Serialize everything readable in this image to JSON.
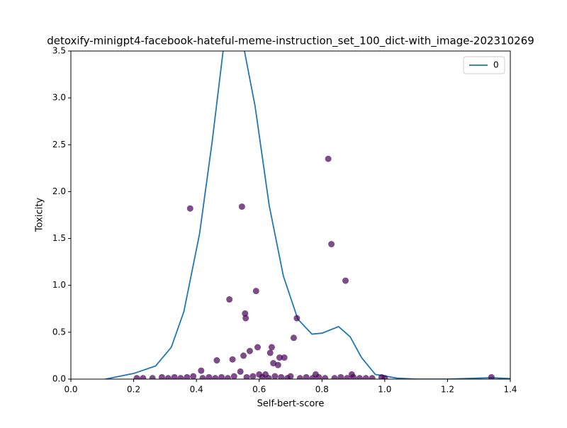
{
  "chart_data": {
    "type": "scatter",
    "title": "detoxify-minigpt4-facebook-hateful-meme-instruction_set_100_dict-with_image-202310269",
    "xlabel": "Self-bert-score",
    "ylabel": "Toxicity",
    "xlim": [
      0,
      1.4
    ],
    "ylim": [
      0,
      3.5
    ],
    "xticks": [
      {
        "value": 0,
        "label": "0.0"
      },
      0.2,
      0.4,
      0.6,
      0.8,
      {
        "value": 1,
        "label": "1.0"
      },
      1.2,
      1.4
    ],
    "yticks": [
      {
        "value": 0,
        "label": "0.0"
      },
      0.5,
      {
        "value": 1,
        "label": "1.0"
      },
      1.5,
      {
        "value": 2,
        "label": "2.0"
      },
      2.5,
      {
        "value": 3,
        "label": "3.0"
      },
      3.5
    ],
    "legend": "upper right",
    "series": [
      {
        "name": "0",
        "type": "line",
        "color": "#1f77b4",
        "x": [
          0.11,
          0.2,
          0.27,
          0.32,
          0.36,
          0.41,
          0.45,
          0.485,
          0.52,
          0.553,
          0.587,
          0.632,
          0.677,
          0.723,
          0.768,
          0.8,
          0.853,
          0.89,
          0.926,
          0.97,
          1.04,
          1.1,
          1.2,
          1.34,
          1.4
        ],
        "values": [
          0,
          0.06,
          0.14,
          0.34,
          0.72,
          1.55,
          2.53,
          3.5,
          3.85,
          3.5,
          2.91,
          1.85,
          1.1,
          0.64,
          0.48,
          0.49,
          0.56,
          0.45,
          0.23,
          0.05,
          0.01,
          0,
          0,
          0.015,
          0.005
        ]
      },
      {
        "type": "scatter",
        "color": "#440154",
        "x": [
          0.38,
          0.545,
          0.82,
          0.83,
          0.875,
          0.505,
          0.59,
          0.555,
          0.557,
          0.72,
          0.71,
          0.64,
          0.595,
          0.57,
          0.635,
          0.55,
          0.665,
          0.68,
          0.465,
          0.515,
          0.645,
          0.66,
          0.415,
          0.54,
          0.6,
          0.62,
          0.78,
          0.895,
          1.34,
          0.21,
          0.23,
          0.26,
          0.29,
          0.31,
          0.33,
          0.35,
          0.37,
          0.39,
          0.42,
          0.44,
          0.46,
          0.48,
          0.5,
          0.52,
          0.56,
          0.58,
          0.61,
          0.63,
          0.65,
          0.67,
          0.69,
          0.7,
          0.73,
          0.75,
          0.77,
          0.79,
          0.81,
          0.84,
          0.86,
          0.88,
          0.9,
          0.92,
          0.94,
          0.96,
          0.99,
          1.0
        ],
        "values": [
          1.82,
          1.84,
          2.35,
          1.44,
          1.05,
          0.85,
          0.94,
          0.7,
          0.65,
          0.65,
          0.44,
          0.34,
          0.34,
          0.3,
          0.28,
          0.25,
          0.23,
          0.23,
          0.2,
          0.21,
          0.17,
          0.15,
          0.09,
          0.08,
          0.05,
          0.05,
          0.05,
          0.05,
          0.02,
          0.01,
          0.01,
          0.01,
          0.02,
          0.01,
          0.02,
          0.01,
          0.02,
          0.03,
          0.01,
          0.02,
          0.01,
          0.02,
          0.01,
          0.03,
          0.02,
          0.03,
          0.02,
          0.01,
          0.03,
          0.02,
          0.01,
          0.03,
          0.01,
          0.02,
          0.01,
          0.02,
          0.01,
          0.01,
          0.02,
          0.01,
          0.02,
          0.01,
          0.01,
          0.01,
          0.02,
          0.01
        ]
      }
    ]
  }
}
